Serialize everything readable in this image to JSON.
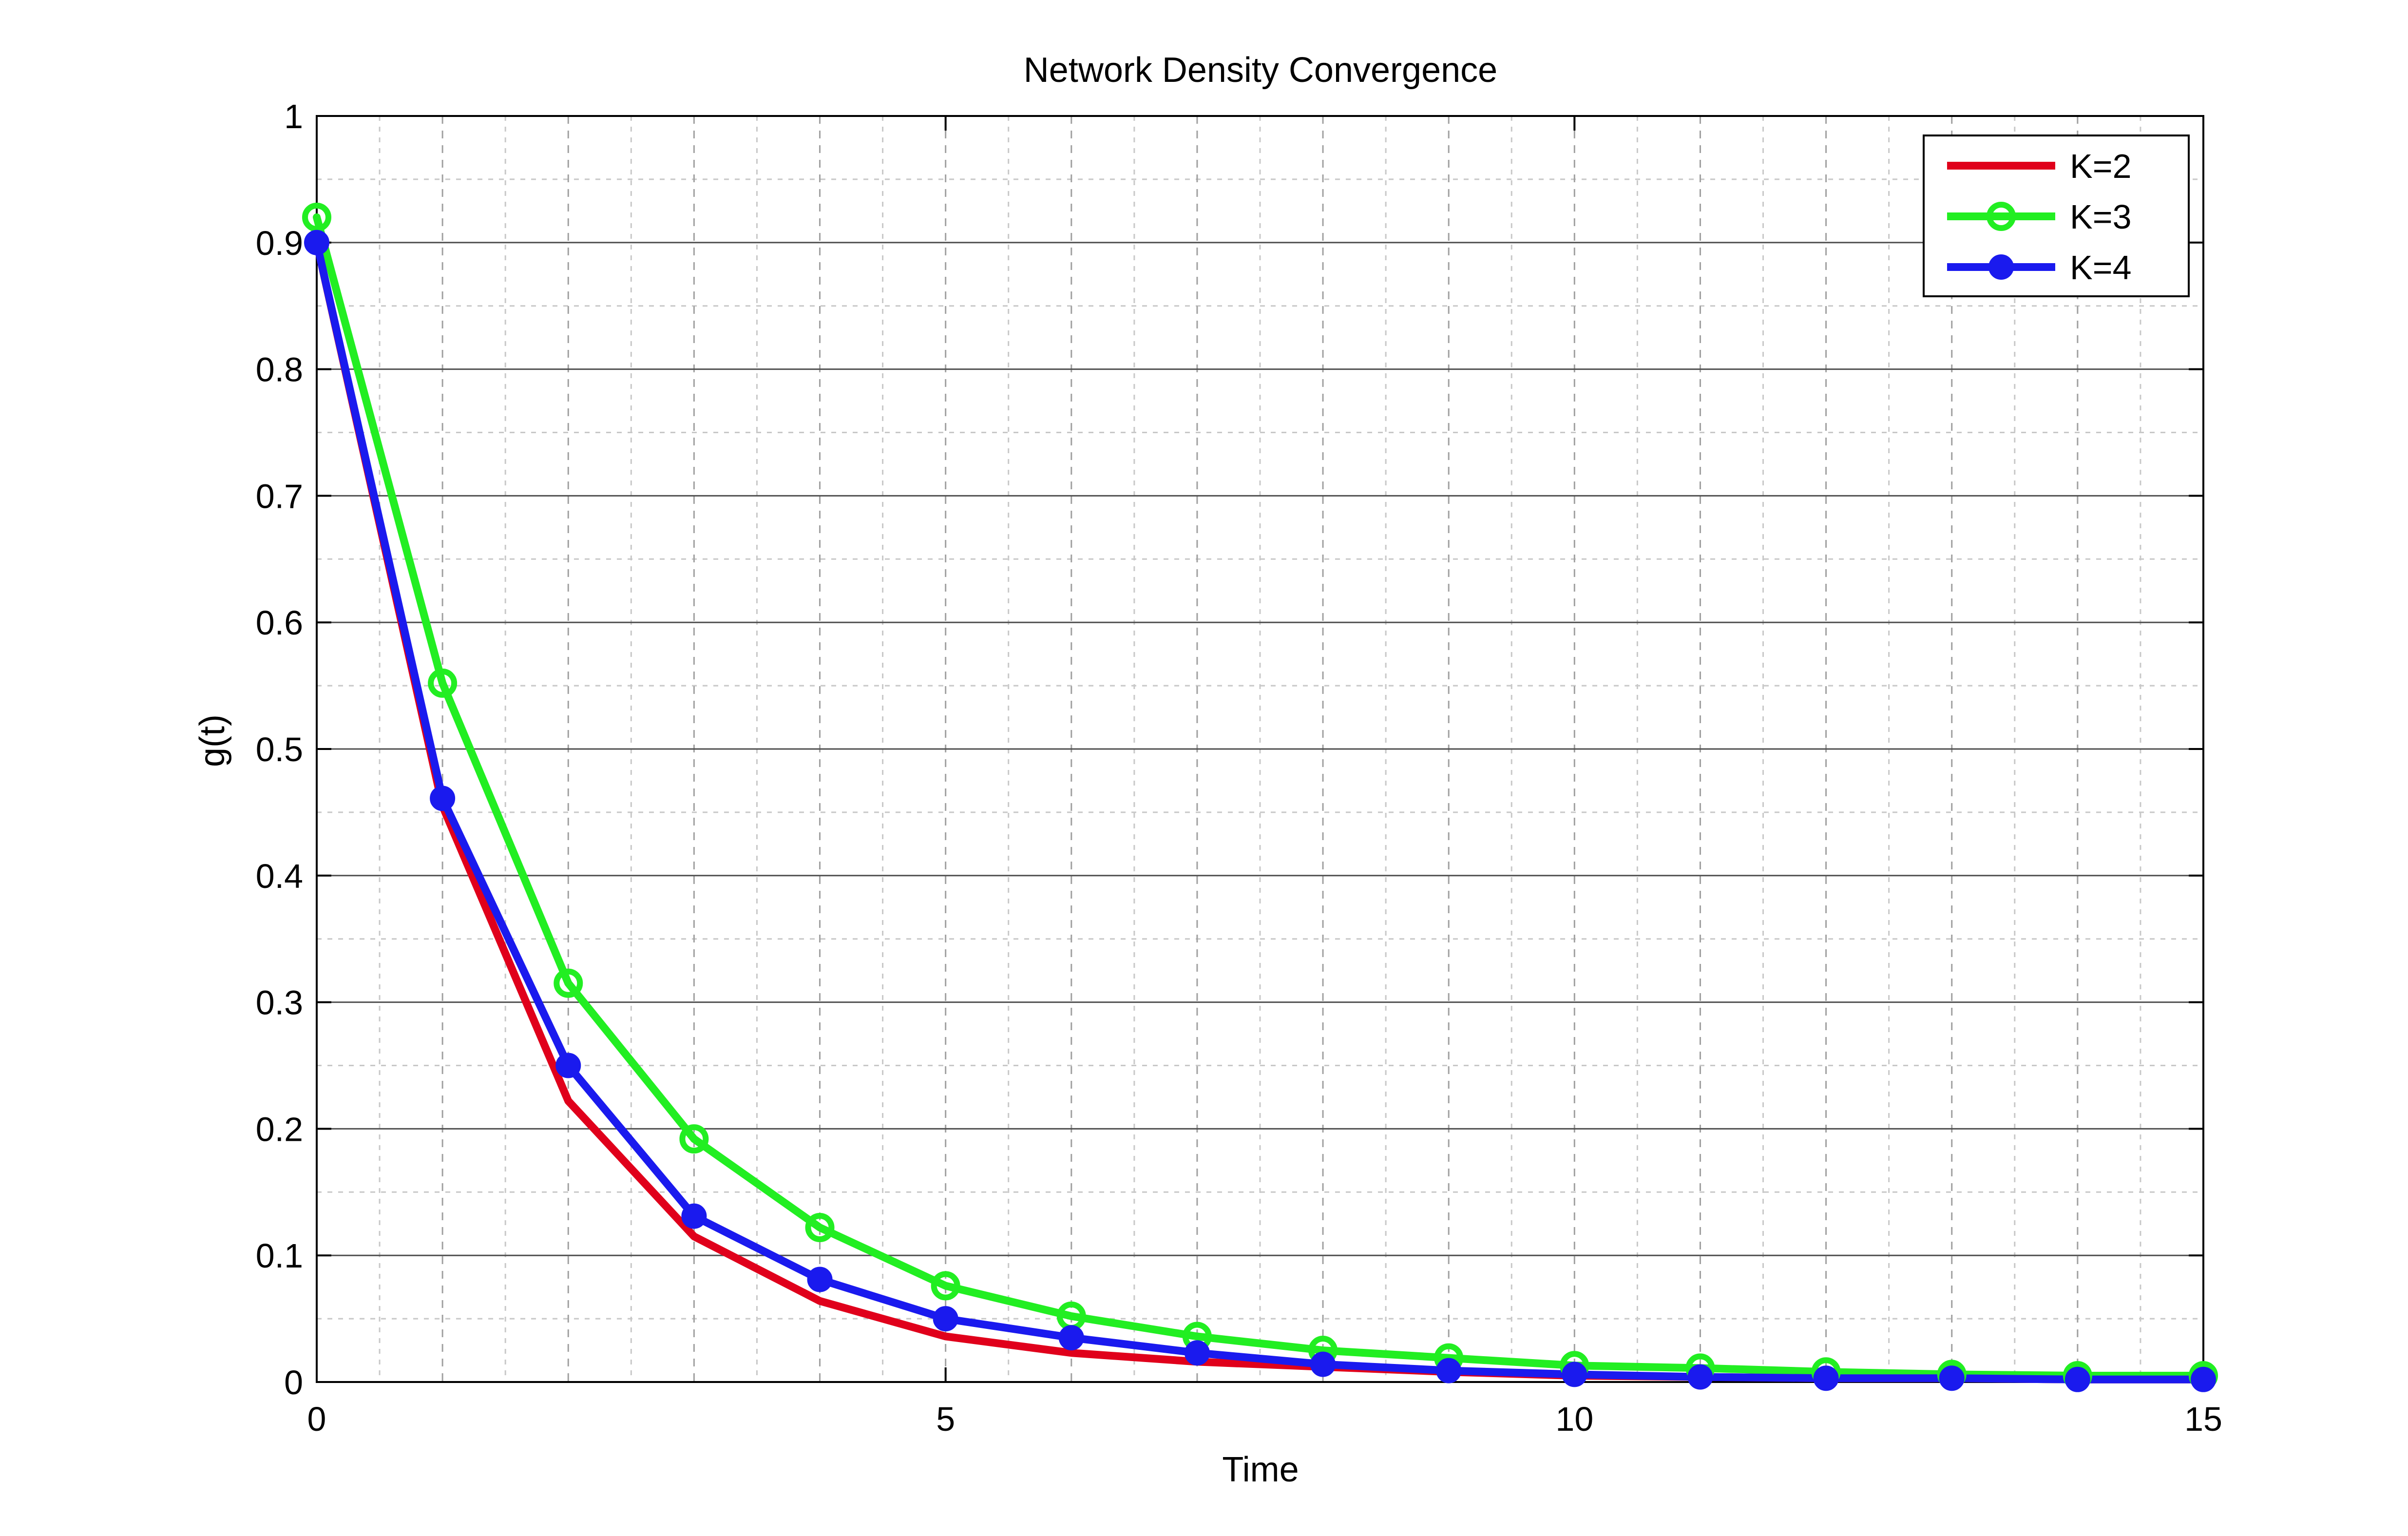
{
  "chart_data": {
    "type": "line",
    "title": "Network Density Convergence",
    "xlabel": "Time",
    "ylabel": "g(t)",
    "xlim": [
      0,
      15
    ],
    "ylim": [
      0,
      1
    ],
    "xticks": [
      0,
      5,
      10,
      15
    ],
    "yticks": [
      0,
      0.1,
      0.2,
      0.3,
      0.4,
      0.5,
      0.6,
      0.7,
      0.8,
      0.9,
      1
    ],
    "xtick_labels": [
      "0",
      "5",
      "10",
      "15"
    ],
    "ytick_labels": [
      "0",
      "0.1",
      "0.2",
      "0.3",
      "0.4",
      "0.5",
      "0.6",
      "0.7",
      "0.8",
      "0.9",
      "1"
    ],
    "grid": true,
    "minor_grid": true,
    "legend_position": "top-right",
    "x": [
      0,
      1,
      2,
      3,
      4,
      5,
      6,
      7,
      8,
      9,
      10,
      11,
      12,
      13,
      14,
      15
    ],
    "series": [
      {
        "name": "K=2",
        "color": "#e0001b",
        "marker": "none",
        "values": [
          0.9,
          0.455,
          0.222,
          0.115,
          0.064,
          0.036,
          0.023,
          0.016,
          0.012,
          0.008,
          0.005,
          0.004,
          0.003,
          0.003,
          0.002,
          0.002
        ]
      },
      {
        "name": "K=3",
        "color": "#22ee22",
        "marker": "open-circle",
        "values": [
          0.92,
          0.552,
          0.315,
          0.192,
          0.122,
          0.076,
          0.052,
          0.036,
          0.025,
          0.019,
          0.013,
          0.011,
          0.008,
          0.006,
          0.005,
          0.005
        ]
      },
      {
        "name": "K=4",
        "color": "#1a1aee",
        "marker": "filled-circle",
        "values": [
          0.9,
          0.461,
          0.25,
          0.131,
          0.081,
          0.05,
          0.035,
          0.023,
          0.014,
          0.009,
          0.006,
          0.004,
          0.003,
          0.003,
          0.002,
          0.002
        ]
      }
    ]
  }
}
